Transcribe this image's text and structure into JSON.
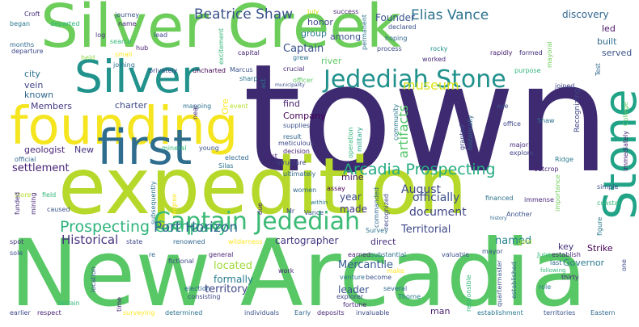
{
  "words": [
    {
      "text": "town",
      "color": "#3e2a70"
    },
    {
      "text": "expedition",
      "color": "#b5d82a"
    },
    {
      "text": "New Arcadia",
      "color": "#58c765"
    },
    {
      "text": "Silver Creek",
      "color": "#6ccd5a"
    },
    {
      "text": "founding",
      "color": "#f4e51f"
    },
    {
      "text": "Silver",
      "color": "#22928c"
    },
    {
      "text": "first",
      "color": "#2f6d8e"
    },
    {
      "text": "Stone",
      "color": "#20a386"
    },
    {
      "text": "Jedediah Stone",
      "color": "#21918c"
    },
    {
      "text": "Captain Jedediah",
      "color": "#3bbb75"
    },
    {
      "text": "Arcadia Prospecting",
      "color": "#25ab82"
    },
    {
      "text": "Prospecting Company",
      "color": "#2fb47c"
    },
    {
      "text": "Beatrice Shaw",
      "color": "#3b528b"
    },
    {
      "text": "Elias Vance",
      "color": "#2c728e"
    },
    {
      "text": "Port Horizon",
      "color": "#31688e"
    },
    {
      "text": "Historical",
      "color": "#46327e"
    },
    {
      "text": "museum",
      "color": "#d8e219"
    },
    {
      "text": "artifacts",
      "color": "#52c569"
    },
    {
      "text": "Captain",
      "color": "#3b528b"
    },
    {
      "text": "August",
      "color": "#3e4a89"
    },
    {
      "text": "document",
      "color": "#404688"
    },
    {
      "text": "officially",
      "color": "#3b528b"
    },
    {
      "text": "settlement",
      "color": "#482475"
    },
    {
      "text": "Territorial",
      "color": "#3e4989"
    },
    {
      "text": "located",
      "color": "#a0da39"
    },
    {
      "text": "named",
      "color": "#26818e"
    },
    {
      "text": "Mercantile",
      "color": "#365c8d"
    },
    {
      "text": "territory",
      "color": "#3f4788"
    },
    {
      "text": "leader",
      "color": "#3b528b"
    },
    {
      "text": "made",
      "color": "#443a83"
    },
    {
      "text": "year",
      "color": "#3e4a89"
    },
    {
      "text": "cartographer",
      "color": "#453581"
    },
    {
      "text": "formally",
      "color": "#287d8e"
    },
    {
      "text": "Founder",
      "color": "#3a548c"
    },
    {
      "text": "discovery",
      "color": "#31678e"
    },
    {
      "text": "Strike",
      "color": "#440154"
    },
    {
      "text": "key",
      "color": "#46307e"
    },
    {
      "text": "Governor",
      "color": "#2a788e"
    },
    {
      "text": "mine",
      "color": "#481769"
    },
    {
      "text": "man",
      "color": "#481f70"
    },
    {
      "text": "direct",
      "color": "#472e7c"
    },
    {
      "text": "among",
      "color": "#3b528b"
    },
    {
      "text": "river",
      "color": "#5ec962"
    },
    {
      "text": "group",
      "color": "#2a788e"
    },
    {
      "text": "vein",
      "color": "#404688"
    },
    {
      "text": "known",
      "color": "#31688e"
    },
    {
      "text": "city",
      "color": "#2c728e"
    },
    {
      "text": "charter",
      "color": "#3e4a89"
    },
    {
      "text": "Members",
      "color": "#443a83"
    },
    {
      "text": "geologist",
      "color": "#482475"
    },
    {
      "text": "New",
      "color": "#46327e"
    },
    {
      "text": "built",
      "color": "#2f6c8e"
    },
    {
      "text": "served",
      "color": "#3b528b"
    },
    {
      "text": "led",
      "color": "#471063"
    },
    {
      "text": "honor",
      "color": "#3e4989"
    },
    {
      "text": "Company",
      "color": "#440154"
    },
    {
      "text": "find",
      "color": "#482173"
    },
    {
      "text": "Ore",
      "color": "#fde725"
    },
    {
      "text": "Recognizing",
      "color": "#404688"
    },
    {
      "text": "journey",
      "color": "#3b528b"
    },
    {
      "text": "name",
      "color": "#482878"
    },
    {
      "text": "lead",
      "color": "#3e4989"
    },
    {
      "text": "hub",
      "color": "#482173"
    },
    {
      "text": "log",
      "color": "#46327e"
    },
    {
      "text": "search",
      "color": "#35b779"
    },
    {
      "text": "small",
      "color": "#fde725"
    },
    {
      "text": "joining",
      "color": "#2c728e"
    },
    {
      "text": "held",
      "color": "#90d743"
    },
    {
      "text": "departed",
      "color": "#2fb47c"
    },
    {
      "text": "months",
      "color": "#31688e"
    },
    {
      "text": "departure",
      "color": "#3e4a89"
    },
    {
      "text": "began",
      "color": "#2a788e"
    },
    {
      "text": "Croft",
      "color": "#46327e"
    },
    {
      "text": "July",
      "color": "#d8e219"
    },
    {
      "text": "success",
      "color": "#482475"
    },
    {
      "text": "permanent",
      "color": "#2c728e"
    },
    {
      "text": "declared",
      "color": "#3b528b"
    },
    {
      "text": "hoping",
      "color": "#31688e"
    },
    {
      "text": "process",
      "color": "#3e4989"
    },
    {
      "text": "rocky",
      "color": "#21918c"
    },
    {
      "text": "worked",
      "color": "#472c7a"
    },
    {
      "text": "grew",
      "color": "#2c728e"
    },
    {
      "text": "capital",
      "color": "#482475"
    },
    {
      "text": "excitement",
      "color": "#35b779"
    },
    {
      "text": "privately",
      "color": "#3e4989"
    },
    {
      "text": "uncharted",
      "color": "#440154"
    },
    {
      "text": "Marcus",
      "color": "#3b528b"
    },
    {
      "text": "sharp",
      "color": "#2c728e"
    },
    {
      "text": "officer",
      "color": "#5ec962"
    },
    {
      "text": "crucial",
      "color": "#482878"
    },
    {
      "text": "act",
      "color": "#2a788e"
    },
    {
      "text": "municipality",
      "color": "#3b528b"
    },
    {
      "text": "rapidly",
      "color": "#482173"
    },
    {
      "text": "formed",
      "color": "#46327e"
    },
    {
      "text": "mayoral",
      "color": "#6ece58"
    },
    {
      "text": "purpose",
      "color": "#2fb47c"
    },
    {
      "text": "Test",
      "color": "#31688e"
    },
    {
      "text": "joined",
      "color": "#3e4989"
    },
    {
      "text": "mapping",
      "color": "#2c728e"
    },
    {
      "text": "event",
      "color": "#b5de2b"
    },
    {
      "text": "near",
      "color": "#482878"
    },
    {
      "text": "supplies",
      "color": "#3b528b"
    },
    {
      "text": "result",
      "color": "#31688e"
    },
    {
      "text": "meticulous",
      "color": "#3e4989"
    },
    {
      "text": "decision",
      "color": "#482475"
    },
    {
      "text": "operation",
      "color": "#35b779"
    },
    {
      "text": "military",
      "color": "#1fa187"
    },
    {
      "text": "historically",
      "color": "#31688e"
    },
    {
      "text": "Shaw",
      "color": "#2c728e"
    },
    {
      "text": "eye",
      "color": "#3b528b"
    },
    {
      "text": "office",
      "color": "#3e4989"
    },
    {
      "text": "major",
      "color": "#482878"
    },
    {
      "text": "explore",
      "color": "#404688"
    },
    {
      "text": "Ridge",
      "color": "#2a788e"
    },
    {
      "text": "College",
      "color": "#5ec962"
    },
    {
      "text": "immediately",
      "color": "#482475"
    },
    {
      "text": "mineral",
      "color": "#35b779"
    },
    {
      "text": "young",
      "color": "#3b528b"
    },
    {
      "text": "elected",
      "color": "#31688e"
    },
    {
      "text": "Silas",
      "color": "#2c728e"
    },
    {
      "text": "structure",
      "color": "#3e4989"
    },
    {
      "text": "vast",
      "color": "#482878"
    },
    {
      "text": "ultimately",
      "color": "#31688e"
    },
    {
      "text": "community",
      "color": "#2a788e"
    },
    {
      "text": "granted",
      "color": "#3e4989"
    },
    {
      "text": "outcrop",
      "color": "#482475"
    },
    {
      "text": "importance",
      "color": "#6ece58"
    },
    {
      "text": "simple",
      "color": "#3b528b"
    },
    {
      "text": "official",
      "color": "#31688e"
    },
    {
      "text": "store",
      "color": "#b5de2b"
    },
    {
      "text": "field",
      "color": "#35b779"
    },
    {
      "text": "funded",
      "color": "#46327e"
    },
    {
      "text": "caused",
      "color": "#3b528b"
    },
    {
      "text": "mining",
      "color": "#482878"
    },
    {
      "text": "degree",
      "color": "#fde725"
    },
    {
      "text": "subsequently",
      "color": "#2c728e"
    },
    {
      "text": "women",
      "color": "#31688e"
    },
    {
      "text": "Mr",
      "color": "#3e4989"
    },
    {
      "text": "due",
      "color": "#482475"
    },
    {
      "text": "within",
      "color": "#2a788e"
    },
    {
      "text": "Vance",
      "color": "#3b528b"
    },
    {
      "text": "assay",
      "color": "#440154"
    },
    {
      "text": "commanded",
      "color": "#31688e"
    },
    {
      "text": "recognized",
      "color": "#3e4989"
    },
    {
      "text": "financed",
      "color": "#2c728e"
    },
    {
      "text": "immense",
      "color": "#482878"
    },
    {
      "text": "Another",
      "color": "#3b528b"
    },
    {
      "text": "history",
      "color": "#31688e"
    },
    {
      "text": "coastal",
      "color": "#35b779"
    },
    {
      "text": "figure",
      "color": "#2a788e"
    },
    {
      "text": "general",
      "color": "#482475"
    },
    {
      "text": "state",
      "color": "#3e4989"
    },
    {
      "text": "sole",
      "color": "#3b528b"
    },
    {
      "text": "spot",
      "color": "#46327e"
    },
    {
      "text": "renowned",
      "color": "#31688e"
    },
    {
      "text": "wilderness",
      "color": "#fde725"
    },
    {
      "text": "Survey",
      "color": "#2c728e"
    },
    {
      "text": "gold",
      "color": "#b5de2b"
    },
    {
      "text": "June",
      "color": "#35b779"
    },
    {
      "text": "establish",
      "color": "#482878"
    },
    {
      "text": "mayor",
      "color": "#3b528b"
    },
    {
      "text": "re",
      "color": "#31688e"
    },
    {
      "text": "fictional",
      "color": "#3e4989"
    },
    {
      "text": "earned",
      "color": "#482475"
    },
    {
      "text": "substantial",
      "color": "#2c728e"
    },
    {
      "text": "valuable",
      "color": "#3b528b"
    },
    {
      "text": "last",
      "color": "#31688e"
    },
    {
      "text": "thirty",
      "color": "#482878"
    },
    {
      "text": "one",
      "color": "#3e4989"
    },
    {
      "text": "role",
      "color": "#2a788e"
    },
    {
      "text": "following",
      "color": "#35b779"
    },
    {
      "text": "location",
      "color": "#3b528b"
    },
    {
      "text": "election",
      "color": "#31688e"
    },
    {
      "text": "consisting",
      "color": "#3e4989"
    },
    {
      "text": "work",
      "color": "#482475"
    },
    {
      "text": "venture",
      "color": "#2c728e"
    },
    {
      "text": "become",
      "color": "#3b528b"
    },
    {
      "text": "make",
      "color": "#fde725"
    },
    {
      "text": "several",
      "color": "#31688e"
    },
    {
      "text": "explorer",
      "color": "#3e4989"
    },
    {
      "text": "fortune",
      "color": "#482878"
    },
    {
      "text": "Thorne",
      "color": "#2a788e"
    },
    {
      "text": "responsible",
      "color": "#35b779"
    },
    {
      "text": "quartermaster",
      "color": "#3b528b"
    },
    {
      "text": "established",
      "color": "#31688e"
    },
    {
      "text": "earlier",
      "color": "#3e4989"
    },
    {
      "text": "respect",
      "color": "#482475"
    },
    {
      "text": "surveying",
      "color": "#fde725"
    },
    {
      "text": "determined",
      "color": "#2c728e"
    },
    {
      "text": "individuals",
      "color": "#3b528b"
    },
    {
      "text": "Early",
      "color": "#31688e"
    },
    {
      "text": "deposits",
      "color": "#482878"
    },
    {
      "text": "invaluable",
      "color": "#3e4989"
    },
    {
      "text": "establishment",
      "color": "#2a788e"
    },
    {
      "text": "territories",
      "color": "#3b528b"
    },
    {
      "text": "Eastern",
      "color": "#31688e"
    },
    {
      "text": "terrain",
      "color": "#35b779"
    },
    {
      "text": "time",
      "color": "#482475"
    }
  ]
}
